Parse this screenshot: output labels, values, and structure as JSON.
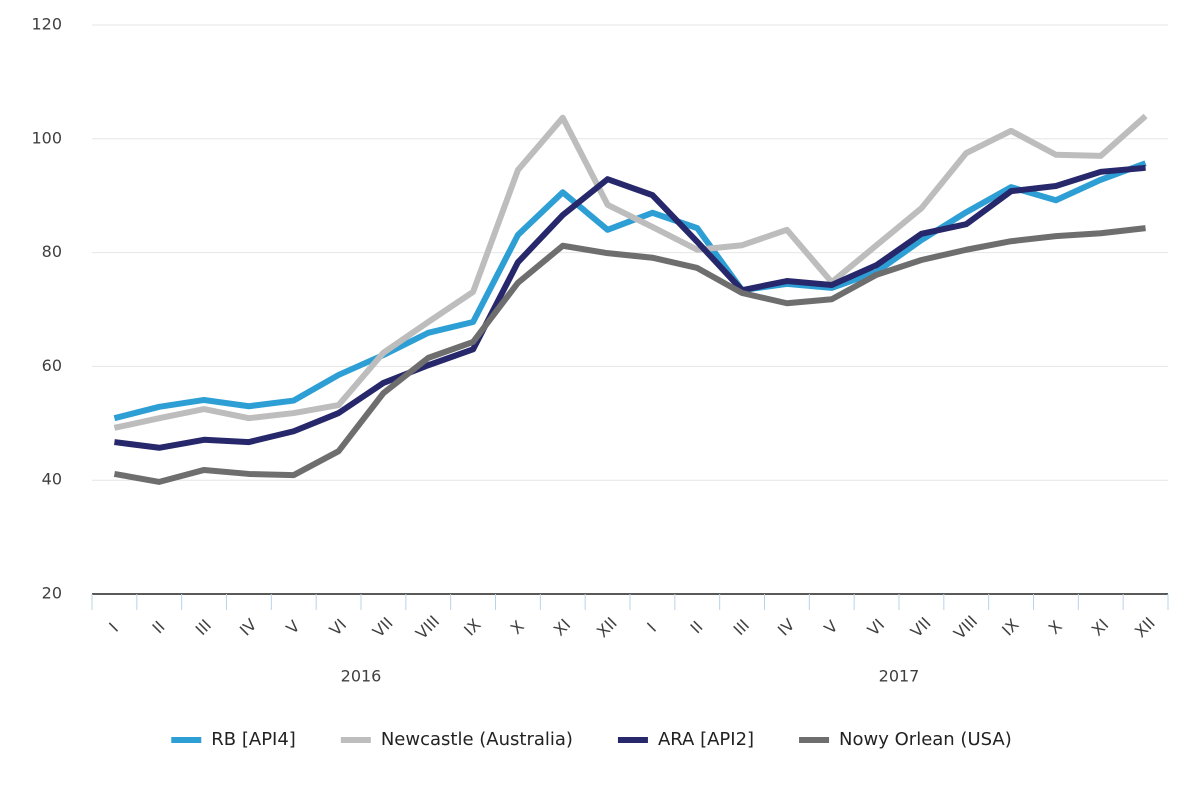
{
  "chart_data": {
    "type": "line",
    "categories": [
      "I",
      "II",
      "III",
      "IV",
      "V",
      "VI",
      "VII",
      "VIII",
      "IX",
      "X",
      "XI",
      "XII",
      "I",
      "II",
      "III",
      "IV",
      "V",
      "VI",
      "VII",
      "VIII",
      "IX",
      "X",
      "XI",
      "XII"
    ],
    "x_groups": [
      "2016",
      "2017"
    ],
    "series": [
      {
        "name": "RB [API4]",
        "color": "#2e9fd4",
        "values": [
          50.9,
          52.9,
          54.1,
          53,
          54,
          58.5,
          62,
          65.9,
          67.8,
          83.1,
          90.6,
          84,
          87,
          84.3,
          73.4,
          74.5,
          73.8,
          76.6,
          82.2,
          87.1,
          91.5,
          89.2,
          92.8,
          95.7
        ]
      },
      {
        "name": "Newcastle (Australia)",
        "color": "#bdbdbd",
        "values": [
          49.2,
          50.9,
          52.5,
          50.9,
          51.8,
          53.2,
          62.4,
          67.8,
          73.1,
          94.5,
          103.7,
          88.4,
          84.5,
          80.5,
          81.3,
          84,
          74.8,
          81.3,
          87.8,
          97.5,
          101.4,
          97.2,
          97,
          104
        ]
      },
      {
        "name": "ARA [API2]",
        "color": "#27286b",
        "values": [
          46.7,
          45.7,
          47.1,
          46.7,
          48.6,
          51.8,
          57.1,
          60.2,
          63,
          78.3,
          86.6,
          92.9,
          90.1,
          81.9,
          73.4,
          75,
          74.3,
          77.8,
          83.3,
          85,
          90.8,
          91.7,
          94.2,
          94.9
        ]
      },
      {
        "name": "Nowy Orlean (USA)",
        "color": "#6e6e6e",
        "values": [
          41.1,
          39.7,
          41.8,
          41.1,
          40.9,
          45.1,
          55.3,
          61.5,
          64.3,
          74.7,
          81.2,
          79.9,
          79.1,
          77.3,
          72.9,
          71.1,
          71.8,
          76.1,
          78.7,
          80.5,
          82,
          82.9,
          83.4,
          84.3
        ]
      }
    ],
    "ylim": [
      20,
      120
    ],
    "yticks": [
      20,
      40,
      60,
      80,
      100,
      120
    ],
    "grid": true,
    "legend": "bottom"
  }
}
